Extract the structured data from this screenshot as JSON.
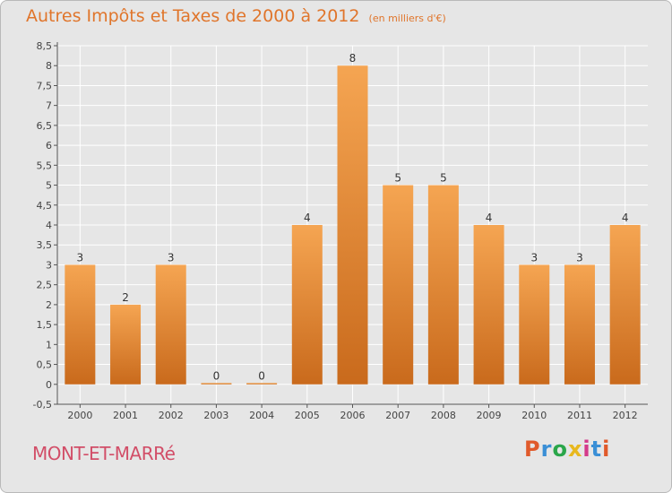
{
  "title": "Autres Impôts et Taxes de 2000 à 2012",
  "unit_note": "(en milliers d'€)",
  "town": "MONT-ET-MARRé",
  "logo": {
    "letters": [
      "P",
      "r",
      "o",
      "x",
      "i",
      "t",
      "i"
    ],
    "colors": [
      "#e05a2b",
      "#3a8fd6",
      "#2aa64a",
      "#e8b81e",
      "#d43a8a",
      "#3a8fd6",
      "#e05a2b"
    ]
  },
  "colors": {
    "background": "#e6e6e6",
    "bar_top": "#f5a552",
    "bar_bottom": "#c96a1c",
    "title": "#e0752b",
    "town": "#d24e68",
    "grid": "#ffffff"
  },
  "chart_data": {
    "type": "bar",
    "categories": [
      "2000",
      "2001",
      "2002",
      "2003",
      "2004",
      "2005",
      "2006",
      "2007",
      "2008",
      "2009",
      "2010",
      "2011",
      "2012"
    ],
    "values": [
      3,
      2,
      3,
      0,
      0,
      4,
      8,
      5,
      5,
      4,
      3,
      3,
      4
    ],
    "value_labels": [
      "3",
      "2",
      "3",
      "0",
      "0",
      "4",
      "8",
      "5",
      "5",
      "4",
      "3",
      "3",
      "4"
    ],
    "y_ticks": [
      -0.5,
      0,
      0.5,
      1,
      1.5,
      2,
      2.5,
      3,
      3.5,
      4,
      4.5,
      5,
      5.5,
      6,
      6.5,
      7,
      7.5,
      8,
      8.5
    ],
    "y_tick_labels": [
      "-0,5",
      "0",
      "0,5",
      "1",
      "1,5",
      "2",
      "2,5",
      "3",
      "3,5",
      "4",
      "4,5",
      "5",
      "5,5",
      "6",
      "6,5",
      "7",
      "7,5",
      "8",
      "8,5"
    ],
    "ylim": [
      -0.5,
      8.5
    ],
    "grid": true,
    "xlabel": "",
    "ylabel": ""
  }
}
